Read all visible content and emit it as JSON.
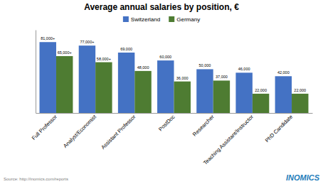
{
  "chart_data": {
    "type": "bar",
    "title": "Average annual salaries by position, €",
    "categories": [
      "Full Professor",
      "Analyst/Economist",
      "Assistant Professor",
      "PostDoc",
      "Researcher",
      "Teaching Assistant/Instructor",
      "PhD Candidate"
    ],
    "series": [
      {
        "name": "Switzerland",
        "color": "#4472C4",
        "values": [
          81000,
          77000,
          69000,
          60000,
          50000,
          46000,
          42000
        ],
        "value_labels": [
          "81,000+",
          "77,000+",
          "69,000",
          "60,000",
          "50,000",
          "46,000",
          "42,000"
        ]
      },
      {
        "name": "Germany",
        "color": "#4E7C32",
        "values": [
          65000,
          58000,
          48000,
          36000,
          37000,
          22000,
          22000
        ],
        "value_labels": [
          "65,000+",
          "58,000+",
          "48,000",
          "36,000",
          "37,000",
          "22,000",
          "22,000"
        ]
      }
    ],
    "ylim": [
      0,
      95000
    ],
    "yticks": [],
    "tick_labels": "x",
    "data_labels": true,
    "legend": "top",
    "grid": false,
    "annotations": [
      "Source: http://inomics.com/reports",
      "INOMICS"
    ]
  }
}
